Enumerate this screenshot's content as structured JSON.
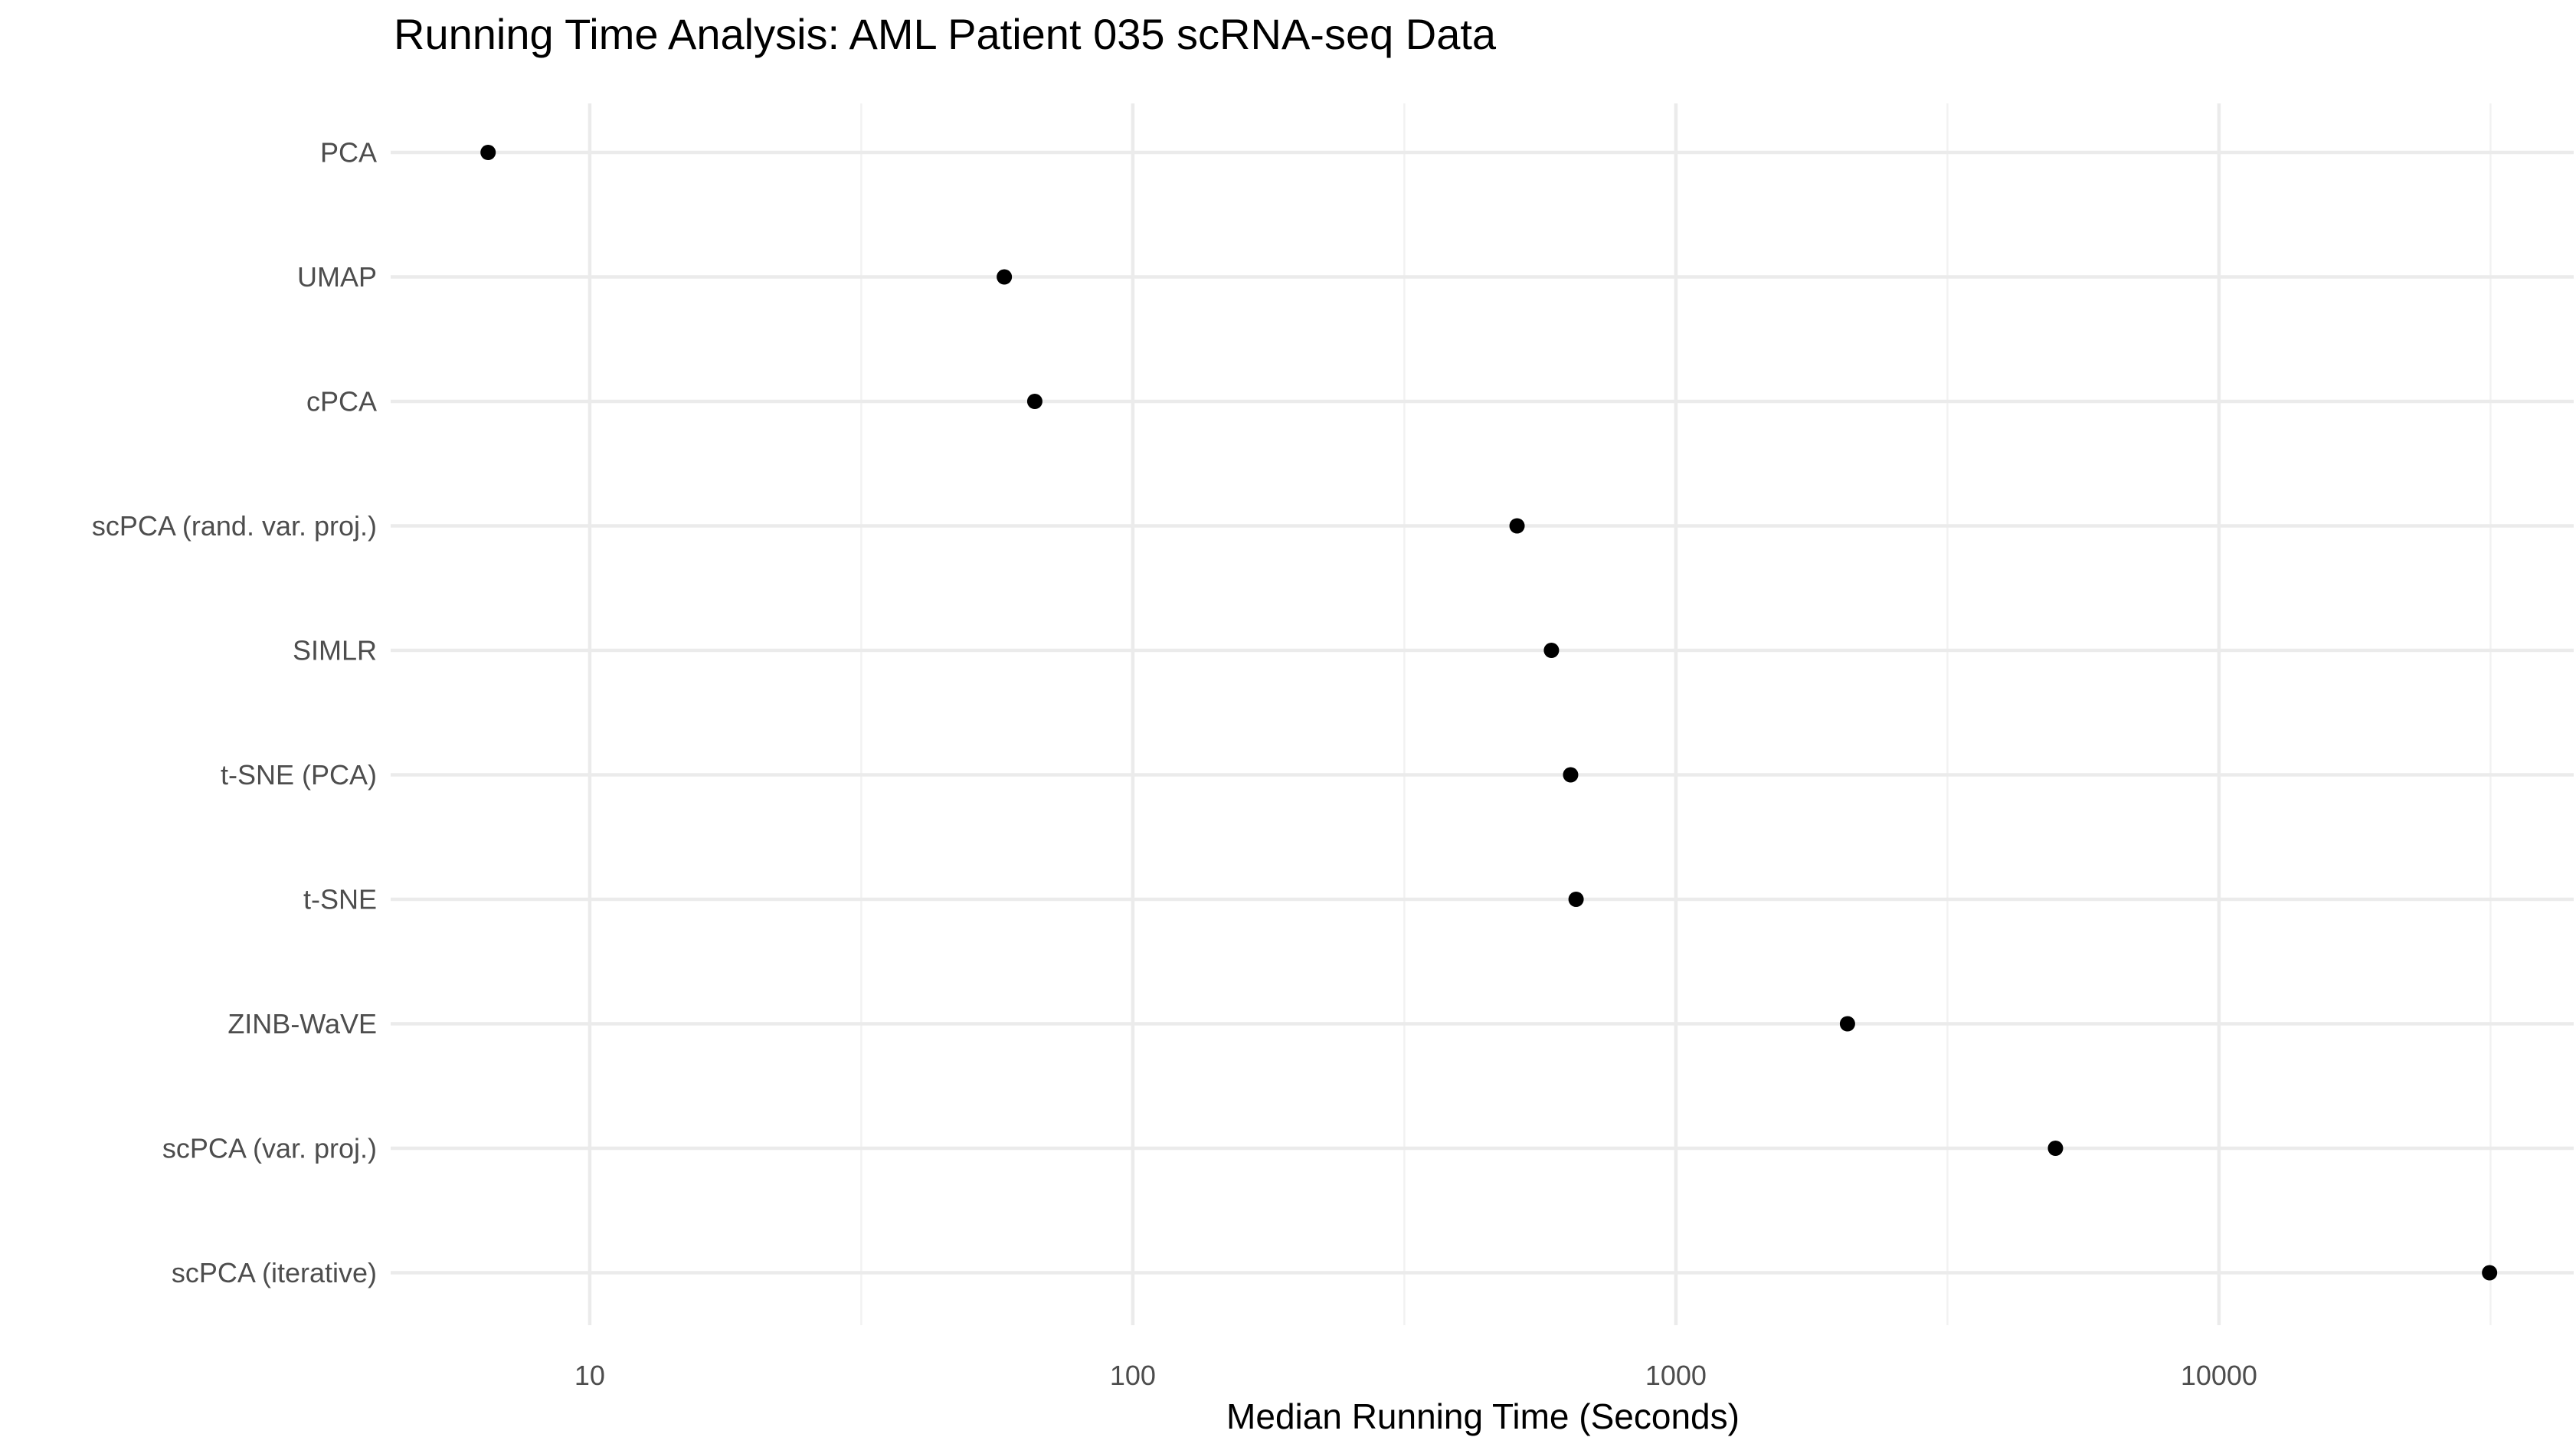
{
  "chart_data": {
    "type": "scatter",
    "title": "Running Time Analysis: AML Patient 035 scRNA-seq Data",
    "xlabel": "Median Running Time (Seconds)",
    "ylabel": "",
    "x_scale": "log10",
    "xlim": [
      4.3,
      45000
    ],
    "x_ticks": [
      10,
      100,
      1000,
      10000
    ],
    "x_tick_labels": [
      "10",
      "100",
      "1000",
      "10000"
    ],
    "categories": [
      "PCA",
      "UMAP",
      "cPCA",
      "scPCA (rand. var. proj.)",
      "SIMLR",
      "t-SNE (PCA)",
      "t-SNE",
      "ZINB-WaVE",
      "scPCA (var. proj.)",
      "scPCA (iterative)"
    ],
    "values": [
      6.5,
      58,
      66,
      510,
      590,
      640,
      655,
      2070,
      5000,
      31500
    ],
    "grid": true,
    "legend": "none",
    "colors": {
      "point": "#000000",
      "major_grid": "#ebebeb",
      "minor_grid": "#f2f2f2",
      "tick_text": "#4d4d4d",
      "background": "#ffffff"
    }
  }
}
